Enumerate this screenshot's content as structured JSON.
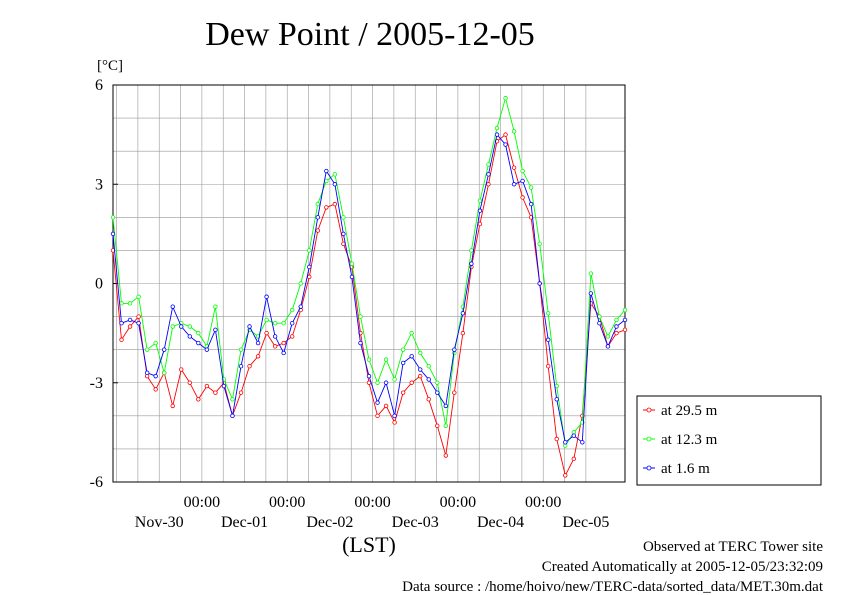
{
  "chart_data": {
    "type": "line",
    "title": "Dew Point / 2005-12-05",
    "ylabel": "[°C]",
    "xlabel": "(LST)",
    "ylim": [
      -6,
      6
    ],
    "yticks": [
      "6",
      "3",
      "0",
      "-3",
      "-6"
    ],
    "xlim_days": [
      0,
      6
    ],
    "time_tick_label": "00:00",
    "day_labels": [
      "Nov-30",
      "Dec-01",
      "Dec-02",
      "Dec-03",
      "Dec-04",
      "Dec-05"
    ],
    "grid": true,
    "legend_position": "right",
    "x_unit_note": "x values are days from the left edge of the plot (Nov-29 ~23:00 LST)",
    "series": [
      {
        "name": "at 29.5 m",
        "color": "#ff0000",
        "x": [
          0,
          0.1,
          0.2,
          0.3,
          0.4,
          0.5,
          0.6,
          0.7,
          0.8,
          0.9,
          1.0,
          1.1,
          1.2,
          1.3,
          1.4,
          1.5,
          1.6,
          1.7,
          1.8,
          1.9,
          2.0,
          2.1,
          2.2,
          2.3,
          2.4,
          2.5,
          2.6,
          2.7,
          2.8,
          2.9,
          3.0,
          3.1,
          3.2,
          3.3,
          3.4,
          3.5,
          3.6,
          3.7,
          3.8,
          3.9,
          4.0,
          4.1,
          4.2,
          4.3,
          4.4,
          4.5,
          4.6,
          4.7,
          4.8,
          4.9,
          5.0,
          5.1,
          5.2,
          5.3,
          5.4,
          5.5,
          5.6,
          5.7,
          5.8,
          5.9,
          6.0
        ],
        "values": [
          1.0,
          -1.7,
          -1.3,
          -1.0,
          -2.8,
          -3.2,
          -2.7,
          -3.7,
          -2.6,
          -3.0,
          -3.5,
          -3.1,
          -3.3,
          -3.0,
          -4.0,
          -3.3,
          -2.5,
          -2.2,
          -1.5,
          -1.9,
          -1.8,
          -1.6,
          -0.8,
          0.2,
          1.6,
          2.3,
          2.4,
          1.2,
          0.5,
          -1.5,
          -3.0,
          -4.0,
          -3.7,
          -4.2,
          -3.3,
          -3.0,
          -2.8,
          -3.5,
          -4.3,
          -5.2,
          -3.3,
          -1.5,
          0.5,
          1.8,
          3.0,
          4.3,
          4.5,
          3.5,
          2.6,
          2.0,
          0.0,
          -2.5,
          -4.7,
          -5.8,
          -5.3,
          -4.0,
          -0.6,
          -1.0,
          -1.9,
          -1.5,
          -1.4
        ]
      },
      {
        "name": "at 12.3 m",
        "color": "#00ff00",
        "x": [
          0,
          0.1,
          0.2,
          0.3,
          0.4,
          0.5,
          0.6,
          0.7,
          0.8,
          0.9,
          1.0,
          1.1,
          1.2,
          1.3,
          1.4,
          1.5,
          1.6,
          1.7,
          1.8,
          1.9,
          2.0,
          2.1,
          2.2,
          2.3,
          2.4,
          2.5,
          2.6,
          2.7,
          2.8,
          2.9,
          3.0,
          3.1,
          3.2,
          3.3,
          3.4,
          3.5,
          3.6,
          3.7,
          3.8,
          3.9,
          4.0,
          4.1,
          4.2,
          4.3,
          4.4,
          4.5,
          4.6,
          4.7,
          4.8,
          4.9,
          5.0,
          5.1,
          5.2,
          5.3,
          5.4,
          5.5,
          5.6,
          5.7,
          5.8,
          5.9,
          6.0
        ],
        "values": [
          2.0,
          -0.6,
          -0.6,
          -0.4,
          -2.0,
          -1.8,
          -2.7,
          -1.3,
          -1.2,
          -1.3,
          -1.5,
          -1.9,
          -0.7,
          -2.9,
          -3.5,
          -2.0,
          -1.4,
          -1.6,
          -1.1,
          -1.2,
          -1.2,
          -0.8,
          0.0,
          1.0,
          2.4,
          3.1,
          3.3,
          2.0,
          0.6,
          -1.0,
          -2.3,
          -3.0,
          -2.3,
          -2.9,
          -2.0,
          -1.5,
          -2.1,
          -2.5,
          -3.0,
          -4.3,
          -2.1,
          -0.7,
          1.0,
          2.5,
          3.6,
          4.7,
          5.6,
          4.6,
          3.4,
          2.9,
          1.2,
          -0.9,
          -3.1,
          -4.9,
          -4.5,
          -4.2,
          0.3,
          -1.0,
          -1.6,
          -1.1,
          -0.8
        ]
      },
      {
        "name": "at 1.6 m",
        "color": "#0000ff",
        "x": [
          0,
          0.1,
          0.2,
          0.3,
          0.4,
          0.5,
          0.6,
          0.7,
          0.8,
          0.9,
          1.0,
          1.1,
          1.2,
          1.3,
          1.4,
          1.5,
          1.6,
          1.7,
          1.8,
          1.9,
          2.0,
          2.1,
          2.2,
          2.3,
          2.4,
          2.5,
          2.6,
          2.7,
          2.8,
          2.9,
          3.0,
          3.1,
          3.2,
          3.3,
          3.4,
          3.5,
          3.6,
          3.7,
          3.8,
          3.9,
          4.0,
          4.1,
          4.2,
          4.3,
          4.4,
          4.5,
          4.6,
          4.7,
          4.8,
          4.9,
          5.0,
          5.1,
          5.2,
          5.3,
          5.4,
          5.5,
          5.6,
          5.7,
          5.8,
          5.9,
          6.0
        ],
        "values": [
          1.5,
          -1.2,
          -1.1,
          -1.2,
          -2.7,
          -2.8,
          -2.0,
          -0.7,
          -1.3,
          -1.6,
          -1.8,
          -2.0,
          -1.4,
          -3.1,
          -4.0,
          -2.5,
          -1.3,
          -1.8,
          -0.4,
          -1.6,
          -2.1,
          -1.2,
          -0.7,
          0.5,
          2.0,
          3.4,
          3.0,
          1.5,
          0.2,
          -1.8,
          -2.8,
          -3.6,
          -3.0,
          -4.0,
          -2.4,
          -2.2,
          -2.6,
          -2.9,
          -3.3,
          -3.7,
          -2.0,
          -0.9,
          0.6,
          2.2,
          3.3,
          4.5,
          4.2,
          3.0,
          3.1,
          2.4,
          0.0,
          -1.7,
          -3.5,
          -4.8,
          -4.6,
          -4.8,
          -0.3,
          -1.2,
          -1.9,
          -1.3,
          -1.1
        ]
      }
    ]
  },
  "footer": {
    "line1": "Observed at TERC Tower site",
    "line2": "Created Automatically at 2005-12-05/23:32:09",
    "line3": "Data source : /home/hoivo/new/TERC-data/sorted_data/MET.30m.dat"
  }
}
